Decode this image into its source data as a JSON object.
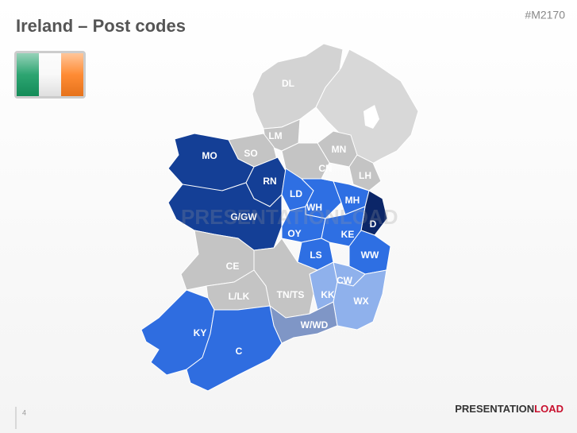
{
  "header": {
    "title": "Ireland – Post codes",
    "code": "#M2170"
  },
  "watermark": "PRESENTATIONLOAD",
  "regions": [
    {
      "label": "DL",
      "color": "#d3d3d3"
    },
    {
      "label": "LM",
      "color": "#c4c4c4"
    },
    {
      "label": "SO",
      "color": "#c4c4c4"
    },
    {
      "label": "MN",
      "color": "#c4c4c4"
    },
    {
      "label": "CN",
      "color": "#c4c4c4"
    },
    {
      "label": "LH",
      "color": "#c4c4c4"
    },
    {
      "label": "MO",
      "color": "#143f96"
    },
    {
      "label": "RN",
      "color": "#143f96"
    },
    {
      "label": "G/GW",
      "color": "#143f96"
    },
    {
      "label": "LD",
      "color": "#2e6fe3"
    },
    {
      "label": "WH",
      "color": "#2e6fe3"
    },
    {
      "label": "MH",
      "color": "#2e6fe3"
    },
    {
      "label": "D",
      "color": "#0b2668"
    },
    {
      "label": "OY",
      "color": "#2e6fe3"
    },
    {
      "label": "KE",
      "color": "#2e6fe3"
    },
    {
      "label": "LS",
      "color": "#2e6fe3"
    },
    {
      "label": "WW",
      "color": "#2e6fe3"
    },
    {
      "label": "CE",
      "color": "#c4c4c4"
    },
    {
      "label": "CW",
      "color": "#8fb1ec"
    },
    {
      "label": "KK",
      "color": "#8fb1ec"
    },
    {
      "label": "WX",
      "color": "#8fb1ec"
    },
    {
      "label": "TN/TS",
      "color": "#c4c4c4"
    },
    {
      "label": "L/LK",
      "color": "#c4c4c4"
    },
    {
      "label": "W/WD",
      "color": "#7f96c6"
    },
    {
      "label": "KY",
      "color": "#2f6de0"
    },
    {
      "label": "C",
      "color": "#2f6de0"
    }
  ],
  "footer": {
    "page": "4",
    "brand": {
      "part1": "PRESENTATION",
      "part2": "LOAD"
    }
  }
}
